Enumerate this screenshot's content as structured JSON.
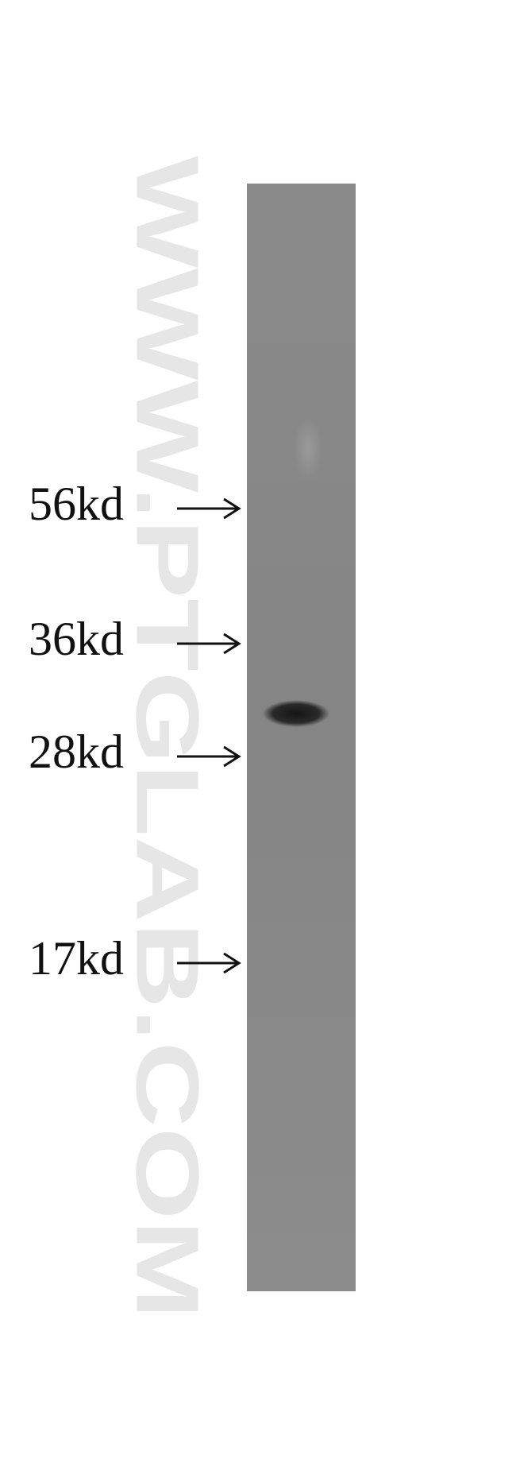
{
  "markers": [
    "56kd",
    "36kd",
    "28kd",
    "17kd"
  ],
  "watermark": "WWW.PTGLAB.COM"
}
